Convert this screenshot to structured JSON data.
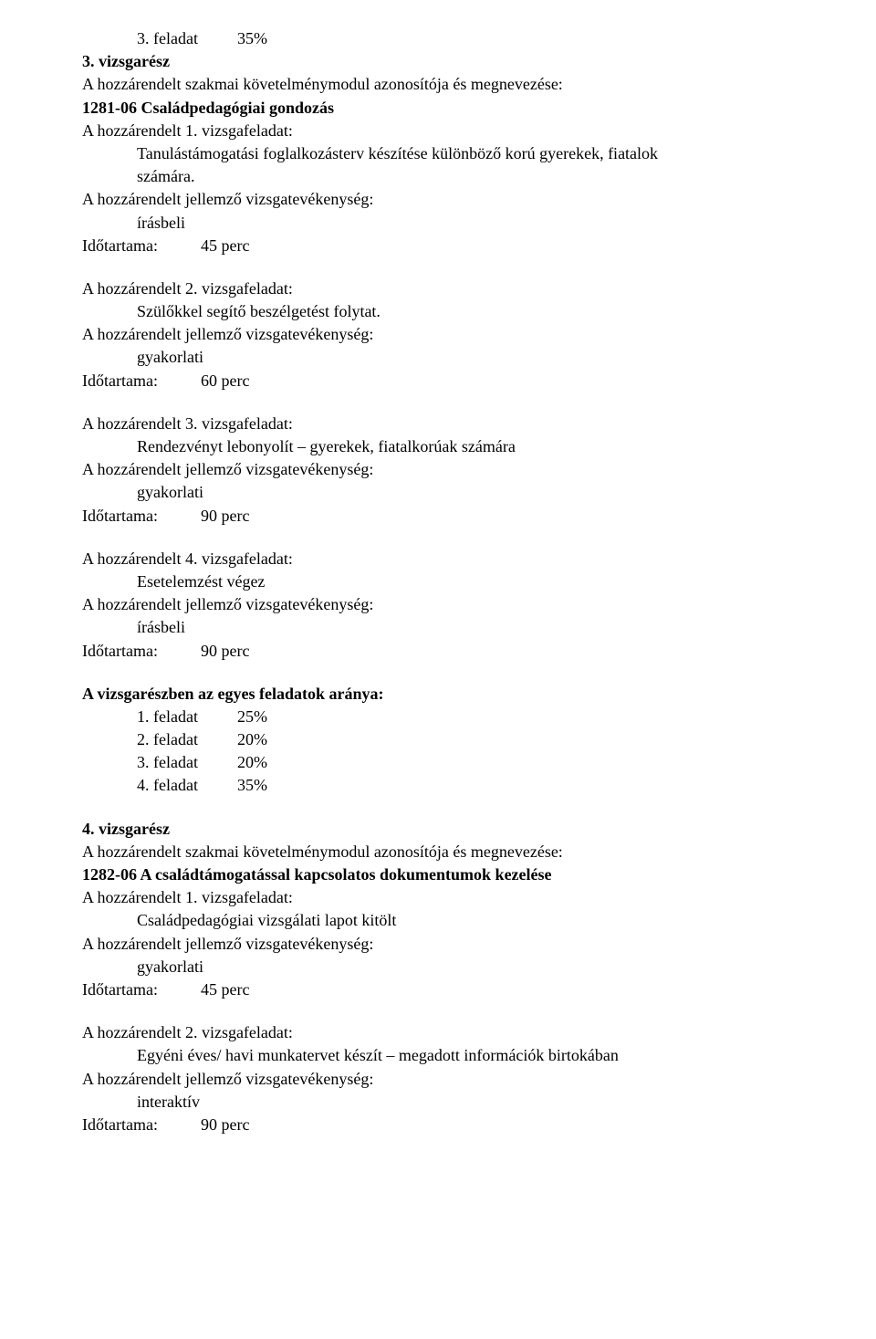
{
  "line1": {
    "task": "3. feladat",
    "pct": "35%"
  },
  "sec3": {
    "title": "3. vizsgarész",
    "req_line": "A hozzárendelt szakmai követelménymodul azonosítója és megnevezése:",
    "module": "1281-06  Családpedagógiai gondozás",
    "f1": {
      "head": "A hozzárendelt 1. vizsgafeladat:",
      "desc1": "Tanulástámogatási foglalkozásterv készítése különböző korú gyerekek, fiatalok",
      "desc2": "számára.",
      "act": "A hozzárendelt jellemző vizsgatevékenység:",
      "type": "írásbeli",
      "dur_label": "Időtartama:",
      "dur_val": "45 perc"
    },
    "f2": {
      "head": "A hozzárendelt 2. vizsgafeladat:",
      "desc1": "Szülőkkel segítő beszélgetést folytat.",
      "act": "A hozzárendelt jellemző vizsgatevékenység:",
      "type": "gyakorlati",
      "dur_label": "Időtartama:",
      "dur_val": "60 perc"
    },
    "f3": {
      "head": "A hozzárendelt 3. vizsgafeladat:",
      "desc1": "Rendezvényt lebonyolít – gyerekek, fiatalkorúak számára",
      "act": "A hozzárendelt jellemző vizsgatevékenység:",
      "type": "gyakorlati",
      "dur_label": "Időtartama:",
      "dur_val": "90 perc"
    },
    "f4": {
      "head": "A hozzárendelt 4. vizsgafeladat:",
      "desc1": "Esetelemzést végez",
      "act": "A hozzárendelt jellemző vizsgatevékenység:",
      "type": "írásbeli",
      "dur_label": "Időtartama:",
      "dur_val": "90 perc"
    },
    "ratios": {
      "title": "A vizsgarészben az egyes feladatok aránya:",
      "r1": {
        "task": "1. feladat",
        "pct": "25%"
      },
      "r2": {
        "task": "2. feladat",
        "pct": "20%"
      },
      "r3": {
        "task": "3. feladat",
        "pct": "20%"
      },
      "r4": {
        "task": "4. feladat",
        "pct": "35%"
      }
    }
  },
  "sec4": {
    "title": "4. vizsgarész",
    "req_line": "A hozzárendelt szakmai követelménymodul azonosítója és megnevezése:",
    "module": "1282-06  A családtámogatással kapcsolatos dokumentumok kezelése",
    "f1": {
      "head": "A hozzárendelt 1. vizsgafeladat:",
      "desc1": "Családpedagógiai vizsgálati lapot kitölt",
      "act": "A hozzárendelt jellemző vizsgatevékenység:",
      "type": "gyakorlati",
      "dur_label": "Időtartama:",
      "dur_val": "45 perc"
    },
    "f2": {
      "head": "A hozzárendelt 2. vizsgafeladat:",
      "desc1": "Egyéni éves/ havi munkatervet készít – megadott információk birtokában",
      "act": "A hozzárendelt jellemző vizsgatevékenység:",
      "type": "interaktív",
      "dur_label": "Időtartama:",
      "dur_val": "90 perc"
    }
  }
}
